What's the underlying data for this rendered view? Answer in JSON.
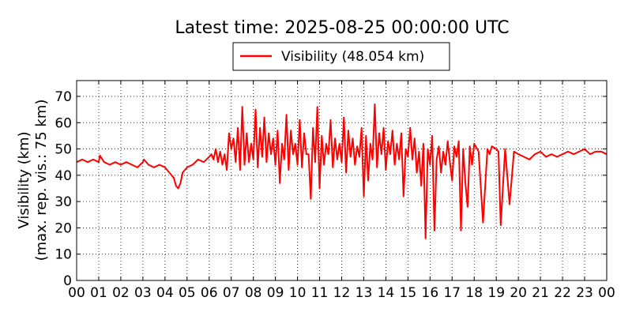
{
  "chart_data": {
    "type": "line",
    "title": "Latest time: 2025-08-25 00:00:00 UTC",
    "ylabel_line1": "Visibility (km)",
    "ylabel_line2": "(max. rep. vis.: 75 km)",
    "xlabel": "",
    "xlim": [
      0,
      24
    ],
    "ylim": [
      0,
      76
    ],
    "x_ticks": [
      "00",
      "01",
      "02",
      "03",
      "04",
      "05",
      "06",
      "07",
      "08",
      "09",
      "10",
      "11",
      "12",
      "13",
      "14",
      "15",
      "16",
      "17",
      "18",
      "19",
      "20",
      "21",
      "22",
      "23",
      "00"
    ],
    "y_ticks": [
      0,
      10,
      20,
      30,
      40,
      50,
      60,
      70
    ],
    "grid": true,
    "legend_position": "top-center",
    "series": [
      {
        "name": "Visibility (48.054 km)",
        "color": "#ff0000",
        "x": [
          0.0,
          0.25,
          0.5,
          0.75,
          1.0,
          1.05,
          1.25,
          1.5,
          1.75,
          2.0,
          2.25,
          2.5,
          2.75,
          3.0,
          3.05,
          3.25,
          3.5,
          3.75,
          4.0,
          4.2,
          4.4,
          4.5,
          4.6,
          4.7,
          4.8,
          5.0,
          5.25,
          5.5,
          5.75,
          6.0,
          6.1,
          6.2,
          6.3,
          6.4,
          6.5,
          6.6,
          6.7,
          6.8,
          6.9,
          7.0,
          7.1,
          7.2,
          7.3,
          7.4,
          7.5,
          7.6,
          7.7,
          7.8,
          7.9,
          8.0,
          8.1,
          8.2,
          8.3,
          8.4,
          8.5,
          8.6,
          8.7,
          8.8,
          8.9,
          9.0,
          9.1,
          9.2,
          9.3,
          9.4,
          9.5,
          9.6,
          9.7,
          9.8,
          9.9,
          10.0,
          10.1,
          10.2,
          10.3,
          10.4,
          10.5,
          10.6,
          10.7,
          10.8,
          10.9,
          11.0,
          11.1,
          11.2,
          11.3,
          11.4,
          11.5,
          11.6,
          11.7,
          11.8,
          11.9,
          12.0,
          12.1,
          12.2,
          12.3,
          12.4,
          12.5,
          12.6,
          12.7,
          12.8,
          12.9,
          13.0,
          13.1,
          13.2,
          13.3,
          13.4,
          13.5,
          13.6,
          13.7,
          13.8,
          13.9,
          14.0,
          14.1,
          14.2,
          14.3,
          14.4,
          14.5,
          14.6,
          14.7,
          14.8,
          14.9,
          15.0,
          15.1,
          15.2,
          15.3,
          15.4,
          15.5,
          15.6,
          15.7,
          15.8,
          15.9,
          16.0,
          16.1,
          16.2,
          16.3,
          16.4,
          16.5,
          16.6,
          16.7,
          16.8,
          16.9,
          17.0,
          17.1,
          17.2,
          17.3,
          17.4,
          17.5,
          17.6,
          17.7,
          17.8,
          17.9,
          18.0,
          18.2,
          18.4,
          18.6,
          18.7,
          18.8,
          19.0,
          19.1,
          19.2,
          19.4,
          19.6,
          19.8,
          20.0,
          20.25,
          20.5,
          20.75,
          21.0,
          21.25,
          21.5,
          21.75,
          22.0,
          22.25,
          22.5,
          22.75,
          23.0,
          23.25,
          23.5,
          23.75,
          24.0
        ],
        "y": [
          45,
          46,
          45,
          46,
          45,
          47.5,
          45,
          44,
          45,
          44,
          45,
          44,
          43,
          45,
          46,
          44,
          43,
          44,
          43,
          41,
          39,
          36,
          35,
          37,
          41,
          43,
          44,
          46,
          45,
          47,
          48,
          46,
          50,
          45,
          49,
          44,
          48,
          42,
          56,
          50,
          54,
          45,
          58,
          42,
          66,
          44,
          56,
          45,
          52,
          46,
          65,
          43,
          58,
          47,
          62,
          45,
          56,
          48,
          54,
          44,
          57,
          37,
          52,
          46,
          63,
          42,
          57,
          48,
          52,
          44,
          61,
          43,
          56,
          48,
          48,
          31,
          58,
          45,
          66,
          35,
          55,
          44,
          52,
          48,
          61,
          43,
          54,
          46,
          52,
          45,
          62,
          41,
          57,
          47,
          54,
          44,
          51,
          47,
          58,
          32,
          55,
          38,
          52,
          46,
          67,
          43,
          56,
          48,
          58,
          42,
          53,
          48,
          57,
          44,
          52,
          46,
          56,
          32,
          50,
          47,
          58,
          46,
          54,
          41,
          49,
          36,
          52,
          16,
          50,
          44,
          55,
          19,
          46,
          51,
          41,
          49,
          44,
          53,
          45,
          38,
          51,
          47,
          53,
          19,
          50,
          37,
          28,
          51,
          44,
          52,
          49,
          22,
          50,
          48,
          51,
          50,
          49,
          21,
          50,
          29,
          49,
          48,
          47,
          46,
          48,
          49,
          47,
          48,
          47,
          48,
          49,
          48,
          49,
          50,
          48,
          49,
          49,
          48
        ]
      }
    ]
  }
}
